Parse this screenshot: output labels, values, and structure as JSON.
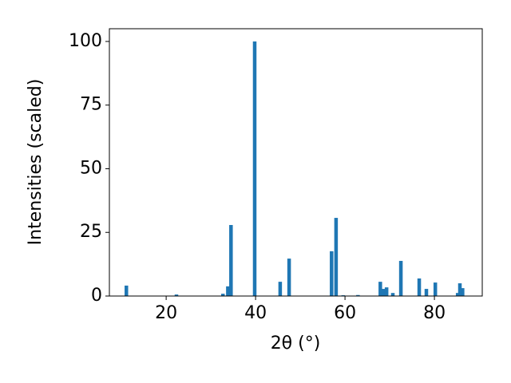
{
  "chart_data": {
    "type": "bar",
    "xlabel": "2θ (°)",
    "ylabel": "Intensities (scaled)",
    "x": [
      11.1,
      22.3,
      32.7,
      33.8,
      34.5,
      39.8,
      45.5,
      47.5,
      57.0,
      58.0,
      59.6,
      62.9,
      67.9,
      68.6,
      69.3,
      70.7,
      72.5,
      76.6,
      78.2,
      80.2,
      85.2,
      85.7,
      86.3
    ],
    "values": [
      4.1,
      0.6,
      0.9,
      3.8,
      27.9,
      100,
      5.6,
      14.7,
      17.6,
      30.7,
      0.3,
      0.4,
      5.6,
      2.8,
      3.4,
      1.2,
      13.8,
      6.9,
      2.8,
      5.3,
      1.2,
      5.0,
      3.1
    ],
    "color": "#1f77b4",
    "xlim": [
      7.3,
      90.7
    ],
    "ylim": [
      0,
      105
    ],
    "xticks": [
      20,
      40,
      60,
      80
    ],
    "yticks": [
      0,
      25,
      50,
      75,
      100
    ],
    "grid": false
  }
}
